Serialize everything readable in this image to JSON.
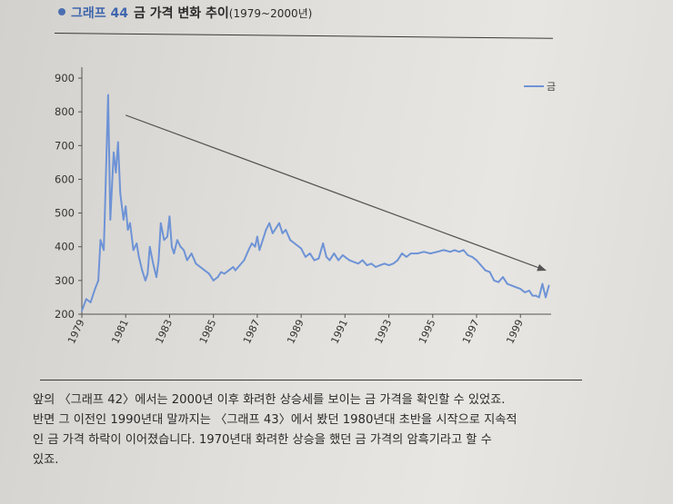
{
  "figure": {
    "label": "그래프 44",
    "title": "금 가격 변화 추이",
    "years": "(1979~2000년)"
  },
  "chart_data": {
    "type": "line",
    "title": "금 가격 변화 추이(1979~2000년)",
    "xlabel": "",
    "ylabel": "",
    "xlim": [
      1979,
      2000.4
    ],
    "ylim": [
      200,
      900
    ],
    "yticks": [
      200,
      300,
      400,
      500,
      600,
      700,
      800,
      900
    ],
    "xticks": [
      "1979",
      "1981",
      "1983",
      "1985",
      "1987",
      "1989",
      "1991",
      "1993",
      "1995",
      "1997",
      "1999"
    ],
    "grid": false,
    "legend": "top-right",
    "series_color": "#6e93d6",
    "trend_color": "#555555",
    "series": [
      {
        "name": "금",
        "x": [
          1979.0,
          1979.2,
          1979.4,
          1979.6,
          1979.75,
          1979.85,
          1980.0,
          1980.05,
          1980.2,
          1980.3,
          1980.45,
          1980.55,
          1980.65,
          1980.75,
          1980.9,
          1981.0,
          1981.1,
          1981.2,
          1981.35,
          1981.5,
          1981.6,
          1981.75,
          1981.9,
          1982.0,
          1982.1,
          1982.25,
          1982.4,
          1982.5,
          1982.6,
          1982.75,
          1982.9,
          1983.0,
          1983.1,
          1983.2,
          1983.35,
          1983.5,
          1983.65,
          1983.8,
          1984.0,
          1984.2,
          1984.4,
          1984.6,
          1984.8,
          1985.0,
          1985.2,
          1985.35,
          1985.5,
          1985.7,
          1985.9,
          1986.0,
          1986.2,
          1986.4,
          1986.6,
          1986.75,
          1986.9,
          1987.0,
          1987.1,
          1987.25,
          1987.4,
          1987.55,
          1987.7,
          1987.85,
          1988.0,
          1988.15,
          1988.3,
          1988.5,
          1988.7,
          1988.9,
          1989.0,
          1989.2,
          1989.4,
          1989.6,
          1989.8,
          1990.0,
          1990.15,
          1990.3,
          1990.5,
          1990.7,
          1990.9,
          1991.0,
          1991.2,
          1991.4,
          1991.6,
          1991.8,
          1992.0,
          1992.2,
          1992.4,
          1992.6,
          1992.8,
          1993.0,
          1993.2,
          1993.4,
          1993.6,
          1993.8,
          1994.0,
          1994.3,
          1994.6,
          1994.9,
          1995.2,
          1995.5,
          1995.8,
          1996.0,
          1996.2,
          1996.4,
          1996.6,
          1996.8,
          1997.0,
          1997.2,
          1997.4,
          1997.6,
          1997.8,
          1998.0,
          1998.2,
          1998.4,
          1998.6,
          1998.8,
          1999.0,
          1999.2,
          1999.4,
          1999.55,
          1999.7,
          1999.85,
          2000.0,
          2000.15,
          2000.3
        ],
        "values": [
          210,
          245,
          235,
          275,
          300,
          420,
          390,
          500,
          850,
          480,
          680,
          620,
          710,
          560,
          480,
          520,
          450,
          470,
          390,
          410,
          370,
          330,
          300,
          320,
          400,
          350,
          310,
          360,
          470,
          420,
          430,
          490,
          400,
          380,
          420,
          400,
          390,
          360,
          380,
          350,
          340,
          330,
          320,
          300,
          310,
          325,
          320,
          330,
          340,
          330,
          345,
          360,
          390,
          410,
          400,
          430,
          390,
          420,
          450,
          470,
          440,
          455,
          470,
          440,
          450,
          420,
          410,
          400,
          395,
          370,
          380,
          360,
          365,
          410,
          370,
          360,
          380,
          360,
          375,
          370,
          360,
          355,
          350,
          360,
          345,
          350,
          340,
          345,
          350,
          345,
          350,
          360,
          380,
          370,
          380,
          380,
          385,
          380,
          385,
          390,
          385,
          390,
          385,
          390,
          375,
          370,
          360,
          345,
          330,
          325,
          300,
          295,
          310,
          290,
          285,
          280,
          275,
          265,
          270,
          255,
          255,
          250,
          290,
          250,
          285
        ]
      }
    ],
    "trend_arrow": {
      "from": [
        1981.0,
        790
      ],
      "to": [
        2000.15,
        330
      ]
    }
  },
  "paragraph": [
    "앞의 〈그래프 42〉에서는 2000년 이후 화려한 상승세를 보이는 금 가격을 확인할 수 있었죠.",
    "반면 그 이전인 1990년대 말까지는 〈그래프 43〉에서 봤던 1980년대 초반을 시작으로 지속적",
    "인 금 가격 하락이 이어졌습니다. 1970년대 화려한 상승을 했던 금 가격의 암흑기라고 할 수",
    "있죠."
  ]
}
